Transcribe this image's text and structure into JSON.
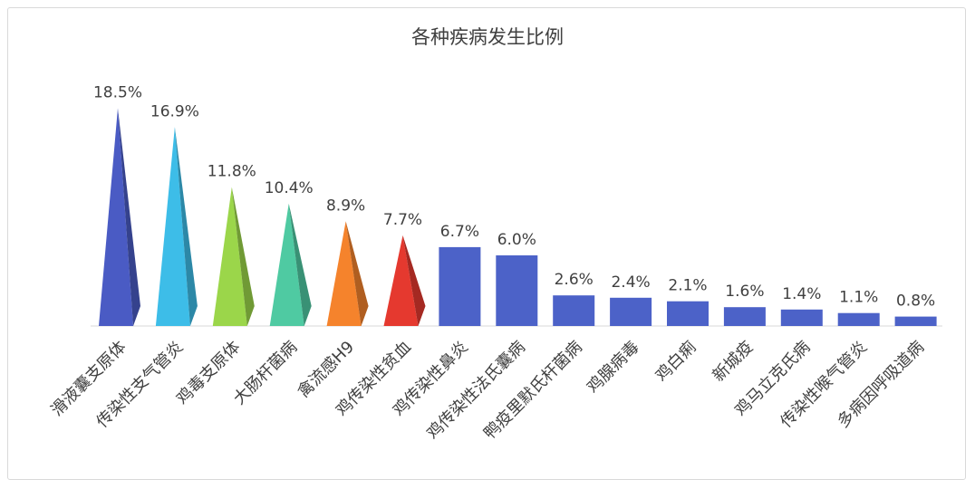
{
  "chart_data": {
    "type": "bar",
    "title": "各种疾病发生比例",
    "xlabel": "",
    "ylabel": "",
    "ylim": [
      0,
      20
    ],
    "grid": false,
    "legend": "none",
    "categories": [
      "滑液囊支原体",
      "传染性支气管炎",
      "鸡毒支原体",
      "大肠杆菌病",
      "禽流感H9",
      "鸡传染性贫血",
      "鸡传染性鼻炎",
      "鸡传染性法氏囊病",
      "鸭疫里默氏杆菌病",
      "鸡腺病毒",
      "鸡白痢",
      "新城疫",
      "鸡马立克氏病",
      "传染性喉气管炎",
      "多病因呼吸道病"
    ],
    "values": [
      18.5,
      16.9,
      11.8,
      10.4,
      8.9,
      7.7,
      6.7,
      6.0,
      2.6,
      2.4,
      2.1,
      1.6,
      1.4,
      1.1,
      0.8
    ],
    "value_labels": [
      "18.5%",
      "16.9%",
      "11.8%",
      "10.4%",
      "8.9%",
      "7.7%",
      "6.7%",
      "6.0%",
      "2.6%",
      "2.4%",
      "2.1%",
      "1.6%",
      "1.4%",
      "1.1%",
      "0.8%"
    ],
    "mark_shapes": [
      "cone",
      "cone",
      "cone",
      "cone",
      "cone",
      "cone",
      "bar",
      "bar",
      "bar",
      "bar",
      "bar",
      "bar",
      "bar",
      "bar",
      "bar"
    ],
    "colors": [
      "#4a5bc4",
      "#3dbde8",
      "#9bd64a",
      "#4fcaa2",
      "#f5832c",
      "#e5392f",
      "#4c62c8",
      "#4c62c8",
      "#4c62c8",
      "#4c62c8",
      "#4c62c8",
      "#4c62c8",
      "#4c62c8",
      "#4c62c8",
      "#4c62c8"
    ]
  }
}
